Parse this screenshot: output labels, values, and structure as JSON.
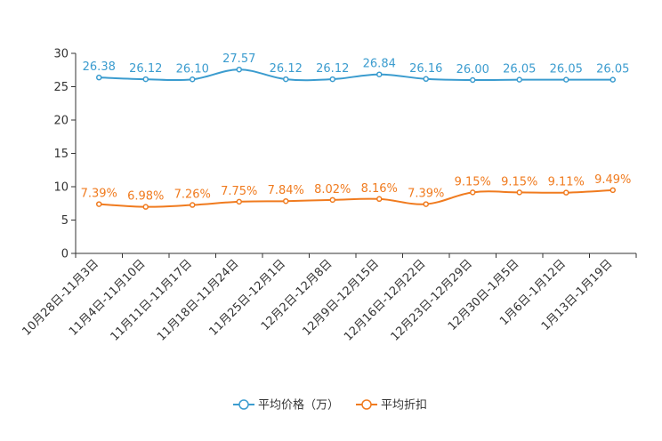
{
  "chart_data": {
    "type": "line",
    "title": "",
    "xlabel": "",
    "ylabel": "",
    "ylim": [
      0,
      30
    ],
    "yticks": [
      0,
      5,
      10,
      15,
      20,
      25,
      30
    ],
    "grid": false,
    "legend_position": "bottom-center",
    "categories": [
      "10月28日-11月3日",
      "11月4日-11月10日",
      "11月11日-11月17日",
      "11月18日-11月24日",
      "11月25日-12月1日",
      "12月2日-12月8日",
      "12月9日-12月15日",
      "12月16日-12月22日",
      "12月23日-12月29日",
      "12月30日-1月5日",
      "1月6日-1月12日",
      "1月13日-1月19日"
    ],
    "series": [
      {
        "name": "平均价格（万）",
        "color": "#3b9ccf",
        "values": [
          26.38,
          26.12,
          26.1,
          27.57,
          26.12,
          26.12,
          26.84,
          26.16,
          26.0,
          26.05,
          26.05,
          26.05
        ],
        "labels": [
          "26.38",
          "26.12",
          "26.10",
          "27.57",
          "26.12",
          "26.12",
          "26.84",
          "26.16",
          "26.00",
          "26.05",
          "26.05",
          "26.05"
        ]
      },
      {
        "name": "平均折扣",
        "color": "#f07b1f",
        "values": [
          7.39,
          6.98,
          7.26,
          7.75,
          7.84,
          8.02,
          8.16,
          7.39,
          9.15,
          9.15,
          9.11,
          9.49
        ],
        "labels": [
          "7.39%",
          "6.98%",
          "7.26%",
          "7.75%",
          "7.84%",
          "8.02%",
          "8.16%",
          "7.39%",
          "9.15%",
          "9.15%",
          "9.11%",
          "9.49%"
        ]
      }
    ]
  }
}
